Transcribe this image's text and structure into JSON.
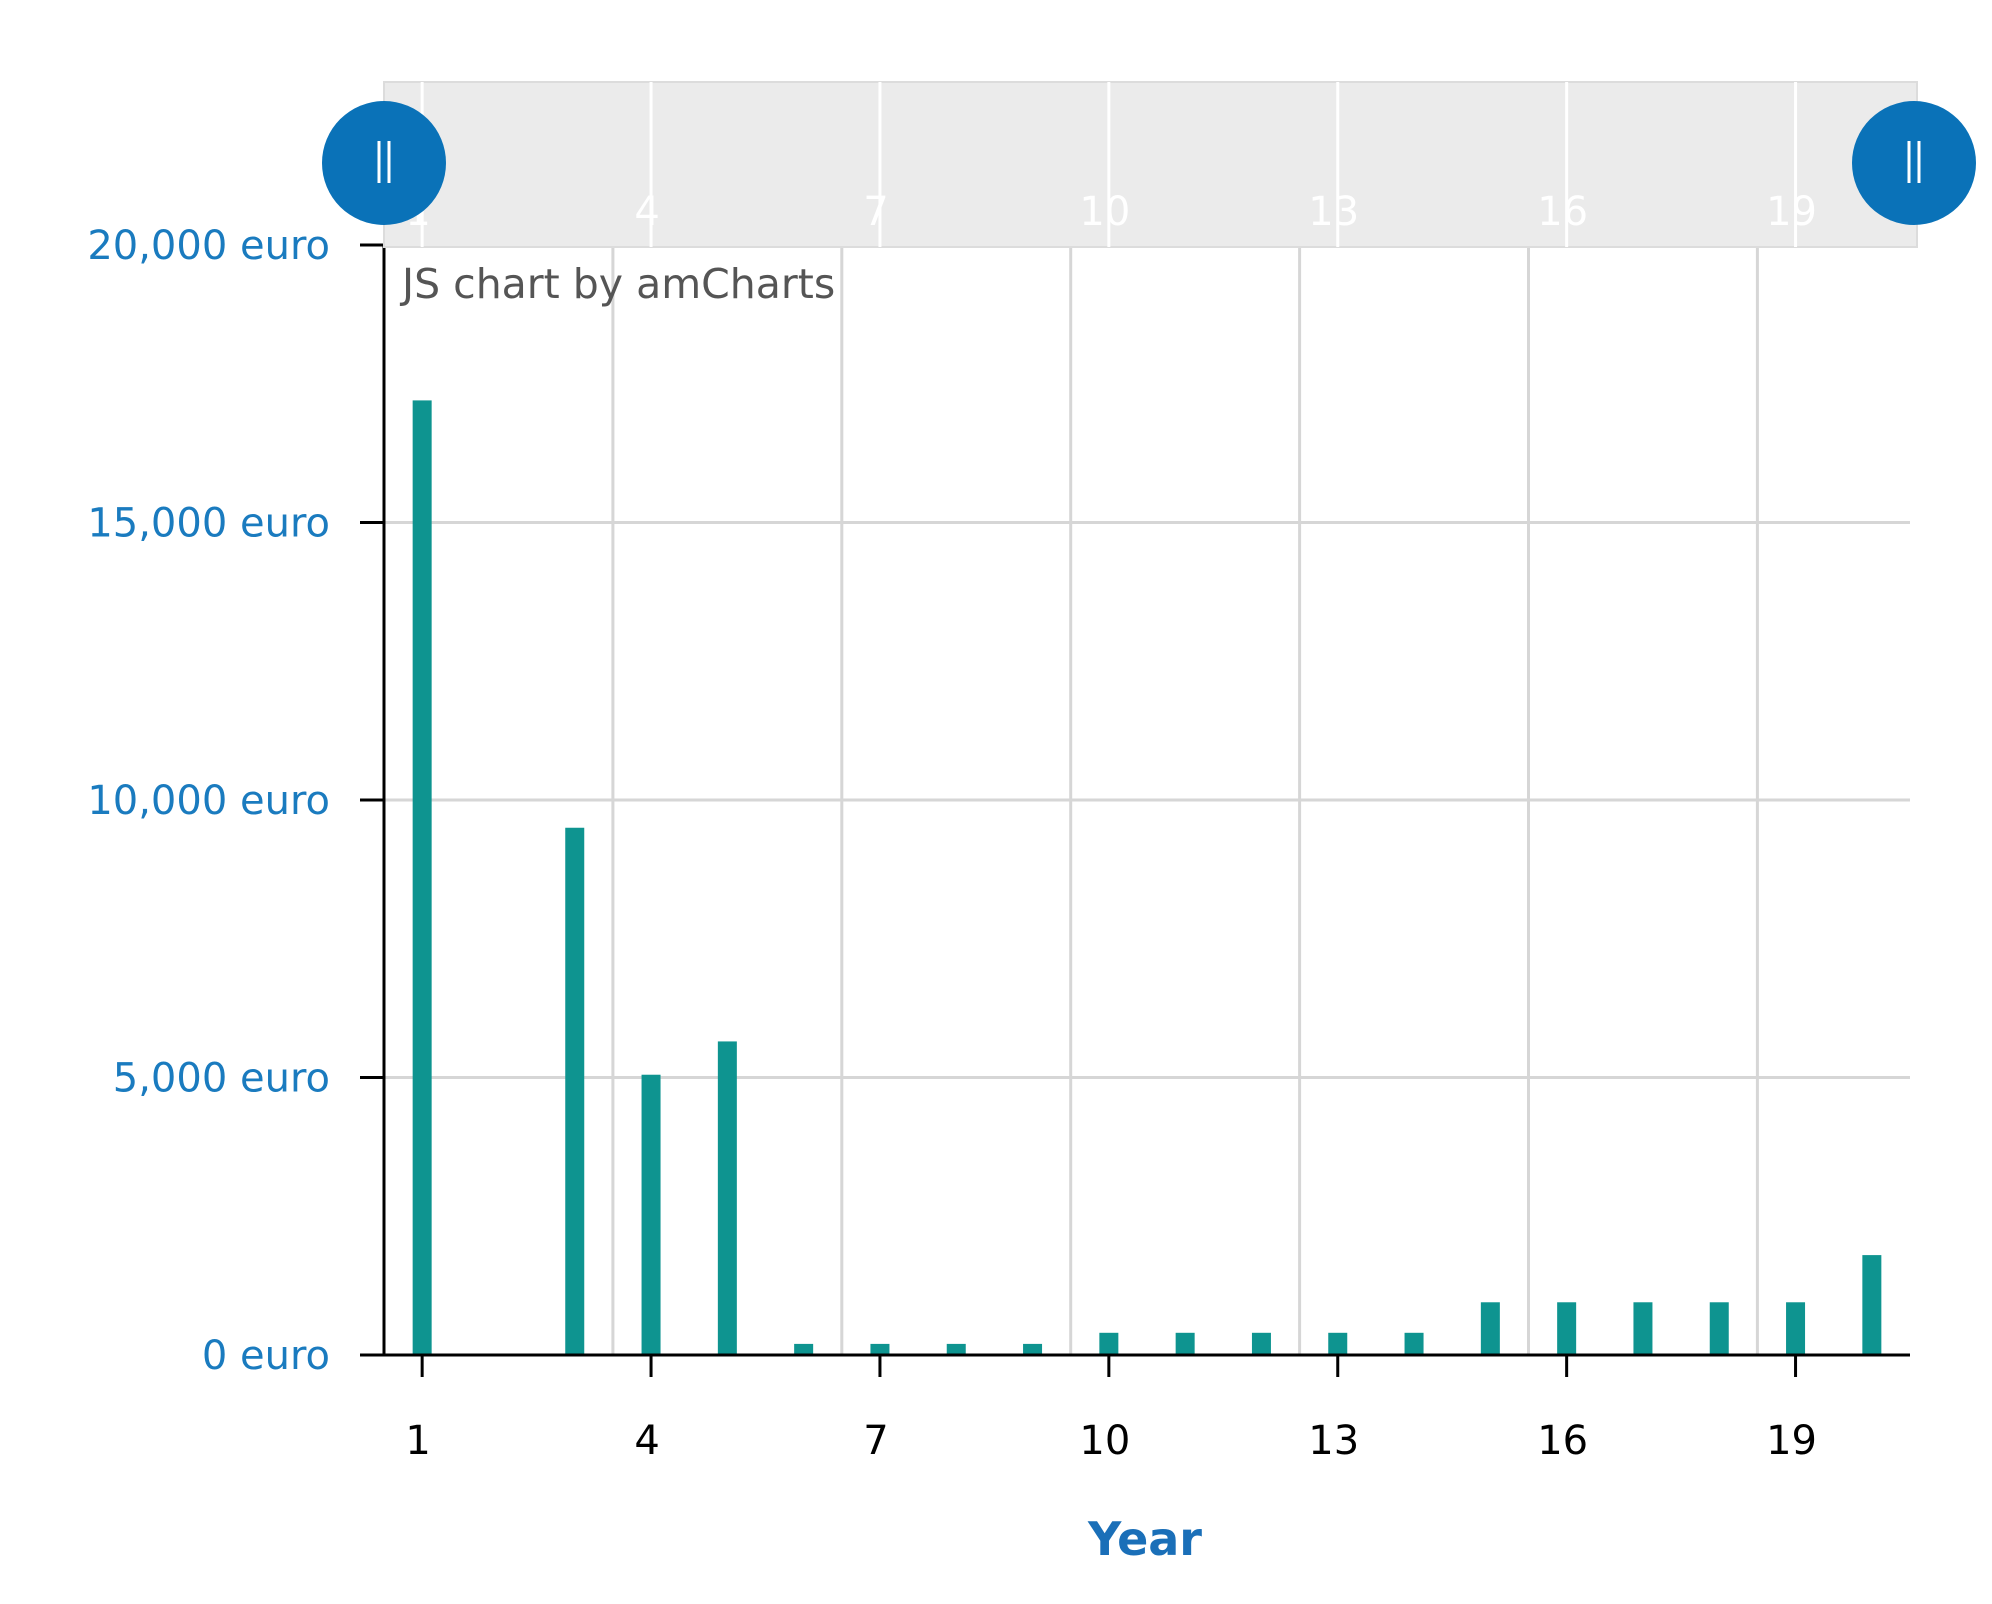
{
  "chart_data": {
    "type": "bar",
    "credit": "JS chart by amCharts",
    "xlabel": "Year",
    "ylabel": "",
    "x": [
      1,
      2,
      3,
      4,
      5,
      6,
      7,
      8,
      9,
      10,
      11,
      12,
      13,
      14,
      15,
      16,
      17,
      18,
      19,
      20
    ],
    "values": [
      17200,
      0,
      9500,
      5050,
      5650,
      200,
      200,
      200,
      200,
      400,
      400,
      400,
      400,
      400,
      950,
      950,
      950,
      950,
      950,
      1800
    ],
    "x_ticks": [
      "1",
      "4",
      "7",
      "10",
      "13",
      "16",
      "19"
    ],
    "y_ticks": [
      0,
      5000,
      10000,
      15000,
      20000
    ],
    "y_tick_labels": [
      "0 euro",
      "5,000 euro",
      "10,000 euro",
      "15,000 euro",
      "20,000 euro"
    ],
    "ylim": [
      0,
      20000
    ],
    "xlim": [
      0.5,
      20.5
    ],
    "grid": true,
    "colors": {
      "bar": "#0e9490",
      "y_label": "#1a7bbf",
      "x_title": "#1a6fb8",
      "grip": "#0a72b8",
      "scrollbar_bg": "#ebebeb",
      "grid": "#d6d6d6",
      "credit": "#555555"
    },
    "scrollbar": {
      "type": "horizontal-range",
      "start_fraction": 0,
      "end_fraction": 1,
      "tick_labels": [
        "1",
        "4",
        "7",
        "10",
        "13",
        "16",
        "19"
      ]
    }
  }
}
